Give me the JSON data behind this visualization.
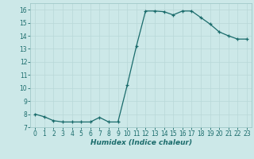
{
  "x": [
    0,
    1,
    2,
    3,
    4,
    5,
    6,
    7,
    8,
    9,
    10,
    11,
    12,
    13,
    14,
    15,
    16,
    17,
    18,
    19,
    20,
    21,
    22,
    23
  ],
  "y": [
    8.0,
    7.8,
    7.5,
    7.4,
    7.4,
    7.4,
    7.4,
    7.75,
    7.4,
    7.4,
    10.2,
    13.2,
    15.9,
    15.9,
    15.85,
    15.6,
    15.9,
    15.9,
    15.4,
    14.9,
    14.3,
    14.0,
    13.75,
    13.75
  ],
  "xlabel": "Humidex (Indice chaleur)",
  "xlim": [
    -0.5,
    23.5
  ],
  "ylim": [
    7,
    16.5
  ],
  "yticks": [
    7,
    8,
    9,
    10,
    11,
    12,
    13,
    14,
    15,
    16
  ],
  "xticks": [
    0,
    1,
    2,
    3,
    4,
    5,
    6,
    7,
    8,
    9,
    10,
    11,
    12,
    13,
    14,
    15,
    16,
    17,
    18,
    19,
    20,
    21,
    22,
    23
  ],
  "line_color": "#1a6b6b",
  "marker": "+",
  "bg_color": "#cce8e8",
  "grid_color": "#b8d8d8",
  "tick_color": "#1a6b6b",
  "label_color": "#1a6b6b",
  "spine_color": "#a0c8c8"
}
